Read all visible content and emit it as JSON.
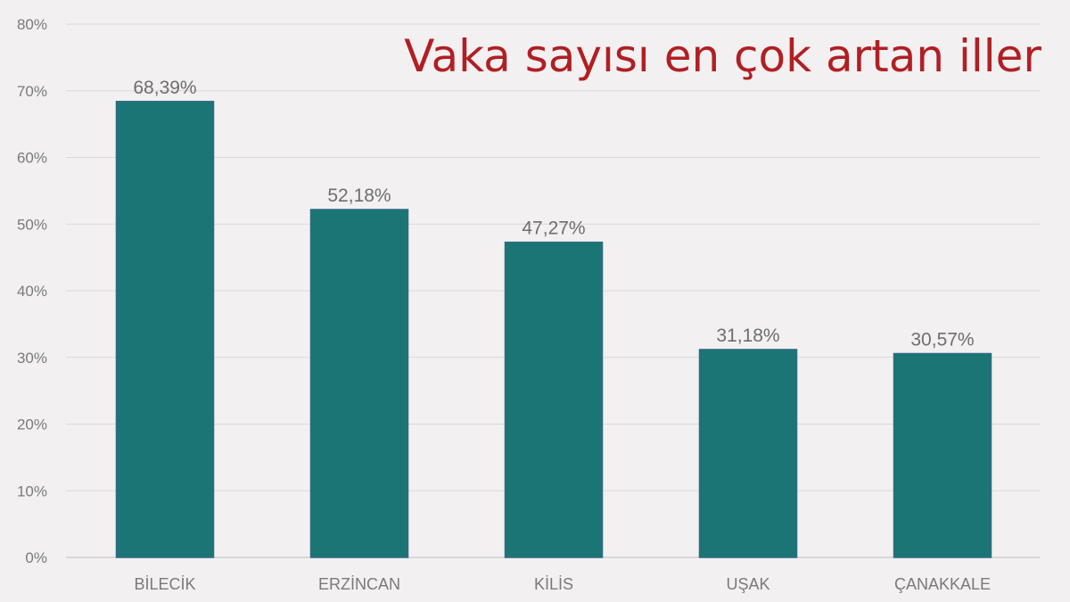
{
  "chart_data": {
    "type": "bar",
    "title": "Vaka sayısı en çok artan iller",
    "categories": [
      "BİLECİK",
      "ERZİNCAN",
      "KİLİS",
      "UŞAK",
      "ÇANAKKALE"
    ],
    "values": [
      68.39,
      52.18,
      47.27,
      31.18,
      30.57
    ],
    "data_labels": [
      "68,39%",
      "52,18%",
      "47,27%",
      "31,18%",
      "30,57%"
    ],
    "y_ticks": [
      "0%",
      "10%",
      "20%",
      "30%",
      "40%",
      "50%",
      "60%",
      "70%",
      "80%"
    ],
    "ylim": [
      0,
      80
    ],
    "xlabel": "",
    "ylabel": "",
    "grid": true,
    "legend": "none",
    "bar_color": "#1b7574",
    "title_color": "#b01f24"
  }
}
